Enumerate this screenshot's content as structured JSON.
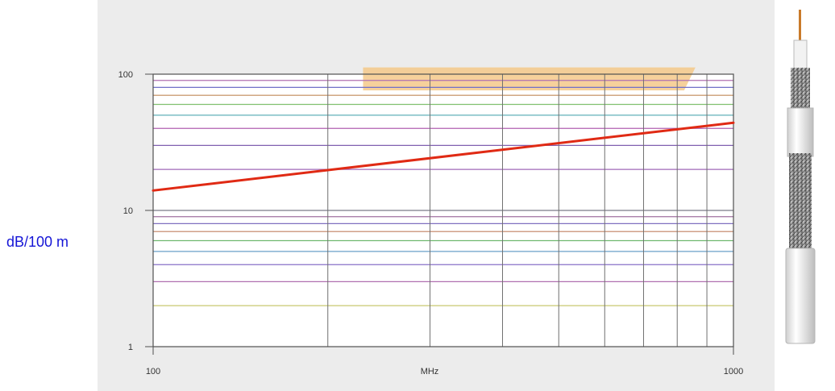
{
  "side_label": "dB/100 m",
  "chart_data": {
    "type": "line",
    "title": "",
    "xlabel": "MHz",
    "ylabel": "dB/100 m",
    "x_scale": "log",
    "y_scale": "log",
    "xlim": [
      100,
      1000
    ],
    "ylim": [
      1,
      100
    ],
    "x_ticks": [
      {
        "value": 100,
        "label": "100"
      },
      {
        "value": 1000,
        "label": "1000"
      }
    ],
    "y_ticks": [
      {
        "value": 1,
        "label": "1"
      },
      {
        "value": 10,
        "label": "10"
      },
      {
        "value": 100,
        "label": "100"
      }
    ],
    "grid": true,
    "vertical_gridlines": [
      200,
      300,
      400,
      500,
      600,
      700,
      800,
      900
    ],
    "horizontal_gridlines": [
      {
        "y": 2,
        "color": "#c8c870"
      },
      {
        "y": 3,
        "color": "#b070b0"
      },
      {
        "y": 4,
        "color": "#8870c8"
      },
      {
        "y": 5,
        "color": "#6aa0c8"
      },
      {
        "y": 6,
        "color": "#70b870"
      },
      {
        "y": 7,
        "color": "#c08060"
      },
      {
        "y": 8,
        "color": "#8070c0"
      },
      {
        "y": 9,
        "color": "#a070a0"
      },
      {
        "y": 20,
        "color": "#a068b8"
      },
      {
        "y": 30,
        "color": "#8060b0"
      },
      {
        "y": 40,
        "color": "#b060b0"
      },
      {
        "y": 50,
        "color": "#60b0b8"
      },
      {
        "y": 60,
        "color": "#80c070"
      },
      {
        "y": 70,
        "color": "#c08858"
      },
      {
        "y": 80,
        "color": "#7070c8"
      },
      {
        "y": 90,
        "color": "#b070b0"
      }
    ],
    "highlight_band": {
      "x": [
        230,
        860
      ],
      "y": [
        76,
        112
      ],
      "color": "#f5c98a"
    },
    "series": [
      {
        "color": "#e02a14",
        "points": [
          [
            100,
            14
          ],
          [
            1000,
            44
          ]
        ]
      }
    ]
  }
}
